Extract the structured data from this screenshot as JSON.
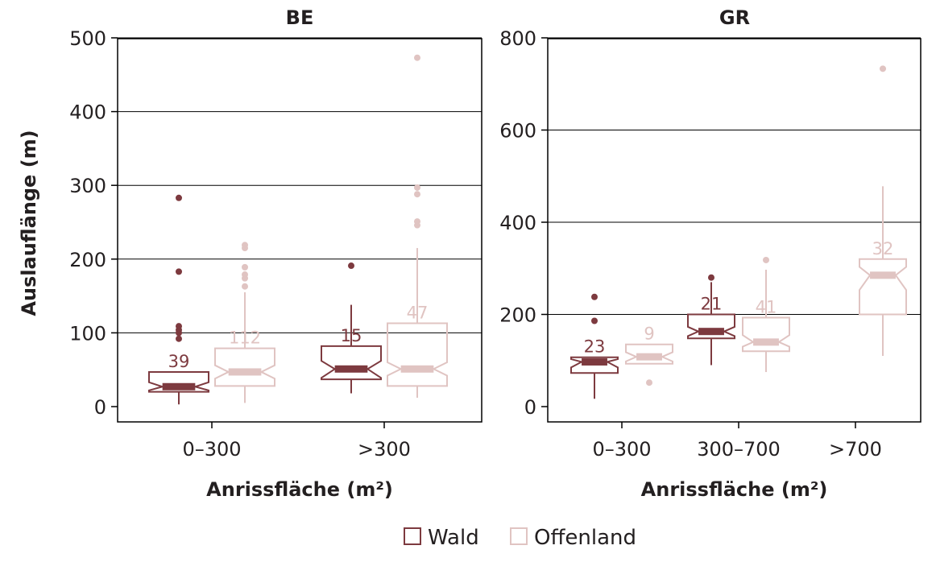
{
  "colors": {
    "wald": "#7d3a3f",
    "offenland": "#e0c4c2",
    "grid": "#000000"
  },
  "legend": [
    {
      "label": "Wald",
      "color": "#7d3a3f"
    },
    {
      "label": "Offenland",
      "color": "#e0c4c2"
    }
  ],
  "chart_data": [
    {
      "type": "boxplot",
      "title": "BE",
      "ylabel": "Auslauflänge (m)",
      "xlabel": "Anrissfläche (m²)",
      "ylim": [
        0,
        500
      ],
      "yticks": [
        0,
        100,
        200,
        300,
        400,
        500
      ],
      "grid": true,
      "categories": [
        "0–300",
        ">300"
      ],
      "boxes": [
        {
          "category": "0–300",
          "series": "Wald",
          "n": "39",
          "min": 3,
          "q1": 20,
          "median": 27,
          "q3": 47,
          "max": 47,
          "notch_low": 22,
          "notch_high": 33,
          "outliers": [
            92,
            100,
            104,
            109,
            183,
            283
          ]
        },
        {
          "category": "0–300",
          "series": "Offenland",
          "n": "112",
          "min": 5,
          "q1": 28,
          "median": 47,
          "q3": 79,
          "max": 155,
          "notch_low": 38,
          "notch_high": 56,
          "outliers": [
            163,
            174,
            179,
            189,
            215,
            219
          ]
        },
        {
          "category": ">300",
          "series": "Wald",
          "n": "15",
          "min": 18,
          "q1": 37,
          "median": 51,
          "q3": 82,
          "max": 138,
          "notch_low": 39,
          "notch_high": 62,
          "outliers": [
            191
          ]
        },
        {
          "category": ">300",
          "series": "Offenland",
          "n": "47",
          "min": 12,
          "q1": 28,
          "median": 51,
          "q3": 113,
          "max": 215,
          "notch_low": 42,
          "notch_high": 60,
          "outliers": [
            246,
            251,
            288,
            297,
            473
          ]
        }
      ]
    },
    {
      "type": "boxplot",
      "title": "GR",
      "xlabel": "Anrissfläche (m²)",
      "ylim": [
        0,
        800
      ],
      "yticks": [
        0,
        200,
        400,
        600,
        800
      ],
      "grid": true,
      "categories": [
        "0–300",
        "300–700",
        ">700"
      ],
      "boxes": [
        {
          "category": "0–300",
          "series": "Wald",
          "n": "23",
          "min": 17,
          "q1": 73,
          "median": 97,
          "q3": 107,
          "max": 107,
          "notch_low": 85,
          "notch_high": 103,
          "outliers": [
            186,
            238
          ]
        },
        {
          "category": "0–300",
          "series": "Offenland",
          "n": "9",
          "min": 93,
          "q1": 93,
          "median": 108,
          "q3": 135,
          "max": 135,
          "notch_low": 98,
          "notch_high": 118,
          "outliers": [
            52
          ]
        },
        {
          "category": "300–700",
          "series": "Wald",
          "n": "21",
          "min": 90,
          "q1": 148,
          "median": 163,
          "q3": 200,
          "max": 270,
          "notch_low": 153,
          "notch_high": 173,
          "outliers": [
            280
          ]
        },
        {
          "category": "300–700",
          "series": "Offenland",
          "n": "41",
          "min": 75,
          "q1": 120,
          "median": 140,
          "q3": 193,
          "max": 297,
          "notch_low": 130,
          "notch_high": 155,
          "outliers": [
            318
          ]
        },
        {
          "category": ">700",
          "series": "Offenland",
          "n": "32",
          "min": 110,
          "q1": 200,
          "median": 285,
          "q3": 320,
          "max": 478,
          "notch_low": 253,
          "notch_high": 303,
          "outliers": [
            733
          ]
        }
      ]
    }
  ]
}
